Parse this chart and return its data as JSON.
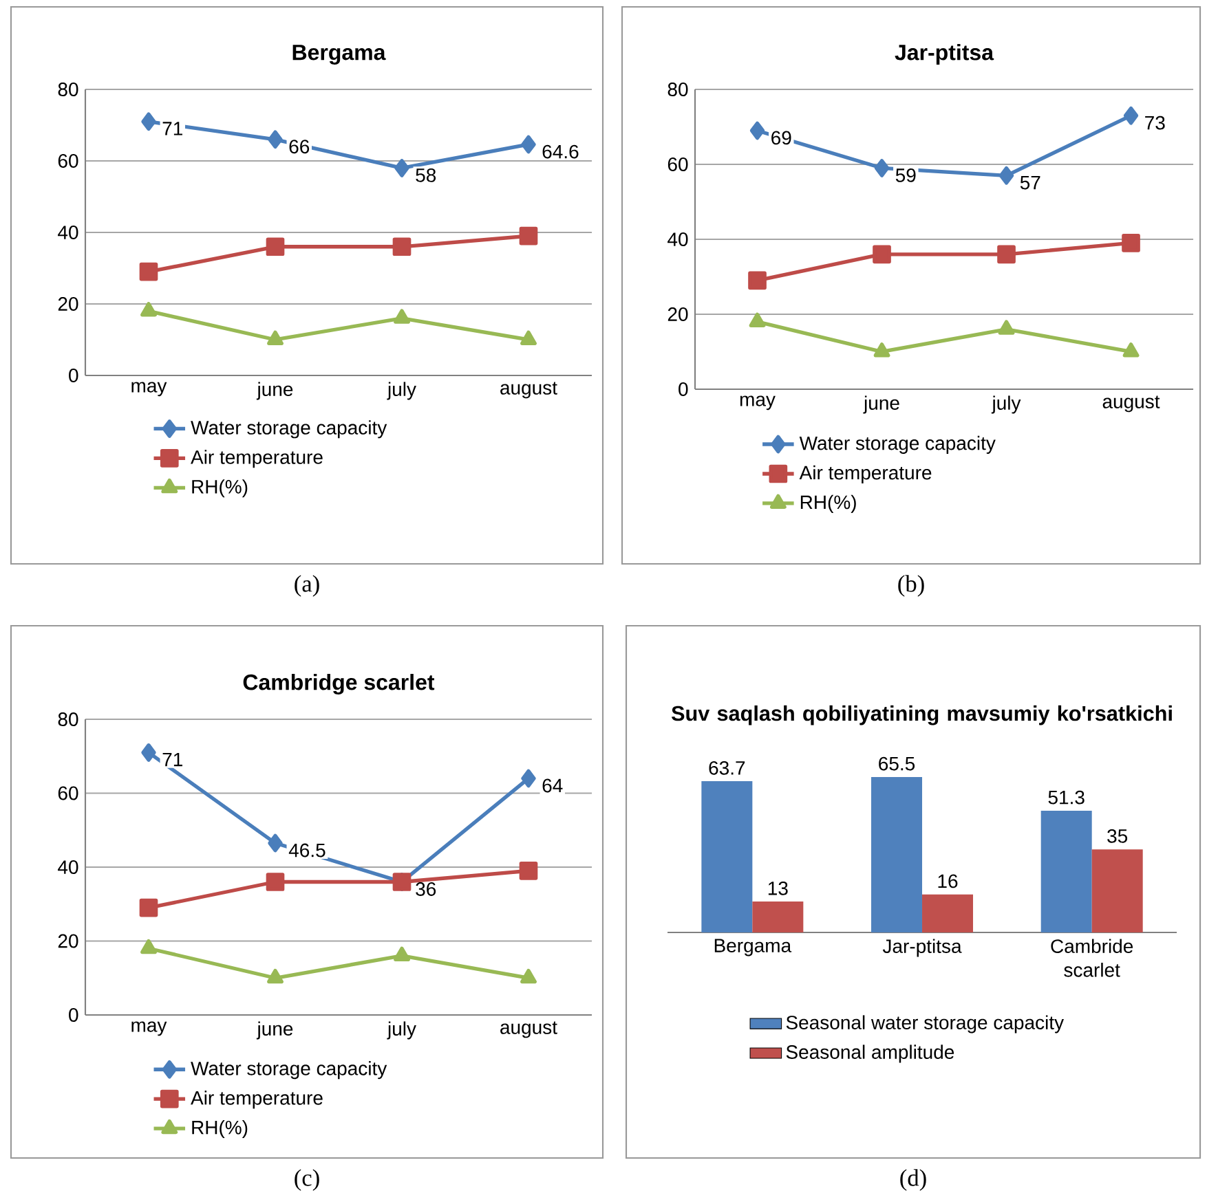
{
  "chart_data": [
    {
      "type": "line",
      "title": "Bergama",
      "categories": [
        "may",
        "june",
        "july",
        "august"
      ],
      "ylim": [
        0,
        80
      ],
      "yticks": [
        0,
        20,
        40,
        60,
        80
      ],
      "grid": "y",
      "legend": "bottom",
      "annotations": [
        "(a)"
      ],
      "series": [
        {
          "name": "Water storage capacity",
          "color": "#4a7ebb",
          "marker": "diamond",
          "values": [
            71,
            66,
            58,
            64.6
          ],
          "value_labels": [
            "71",
            "66",
            "58",
            "64.6"
          ]
        },
        {
          "name": "Air temperature",
          "color": "#be4b48",
          "marker": "square",
          "values": [
            29,
            36,
            36,
            39
          ]
        },
        {
          "name": "RH(%)",
          "color": "#98b954",
          "marker": "triangle",
          "values": [
            18,
            10,
            16,
            10
          ]
        }
      ]
    },
    {
      "type": "line",
      "title": "Jar-ptitsa",
      "categories": [
        "may",
        "june",
        "july",
        "august"
      ],
      "ylim": [
        0,
        80
      ],
      "yticks": [
        0,
        20,
        40,
        60,
        80
      ],
      "grid": "y",
      "legend": "bottom",
      "annotations": [
        "(b)"
      ],
      "series": [
        {
          "name": "Water storage capacity",
          "color": "#4a7ebb",
          "marker": "diamond",
          "values": [
            69,
            59,
            57,
            73
          ],
          "value_labels": [
            "69",
            "59",
            "57",
            "73"
          ]
        },
        {
          "name": "Air temperature",
          "color": "#be4b48",
          "marker": "square",
          "values": [
            29,
            36,
            36,
            39
          ]
        },
        {
          "name": "RH(%)",
          "color": "#98b954",
          "marker": "triangle",
          "values": [
            18,
            10,
            16,
            10
          ]
        }
      ]
    },
    {
      "type": "line",
      "title": "Cambridge scarlet",
      "categories": [
        "may",
        "june",
        "july",
        "august"
      ],
      "ylim": [
        0,
        80
      ],
      "yticks": [
        0,
        20,
        40,
        60,
        80
      ],
      "grid": "y",
      "legend": "bottom",
      "annotations": [
        "(c)"
      ],
      "series": [
        {
          "name": "Water storage capacity",
          "color": "#4a7ebb",
          "marker": "diamond",
          "values": [
            71,
            46.5,
            36,
            64
          ],
          "value_labels": [
            "71",
            "46.5",
            "36",
            "64"
          ]
        },
        {
          "name": "Air temperature",
          "color": "#be4b48",
          "marker": "square",
          "values": [
            29,
            36,
            36,
            39
          ]
        },
        {
          "name": "RH(%)",
          "color": "#98b954",
          "marker": "triangle",
          "values": [
            18,
            10,
            16,
            10
          ]
        }
      ]
    },
    {
      "type": "bar",
      "title": "Suv saqlash qobiliyatining mavsumiy ko'rsatkichi",
      "categories": [
        "Bergama",
        "Jar-ptitsa",
        "Cambride scarlet"
      ],
      "data_labels": true,
      "legend": "bottom",
      "annotations": [
        "(d)"
      ],
      "series": [
        {
          "name": "Seasonal water storage capacity",
          "color": "#4f81bd",
          "values": [
            63.7,
            65.5,
            51.3
          ]
        },
        {
          "name": "Seasonal amplitude",
          "color": "#c0504d",
          "values": [
            13,
            16,
            35
          ]
        }
      ]
    }
  ]
}
